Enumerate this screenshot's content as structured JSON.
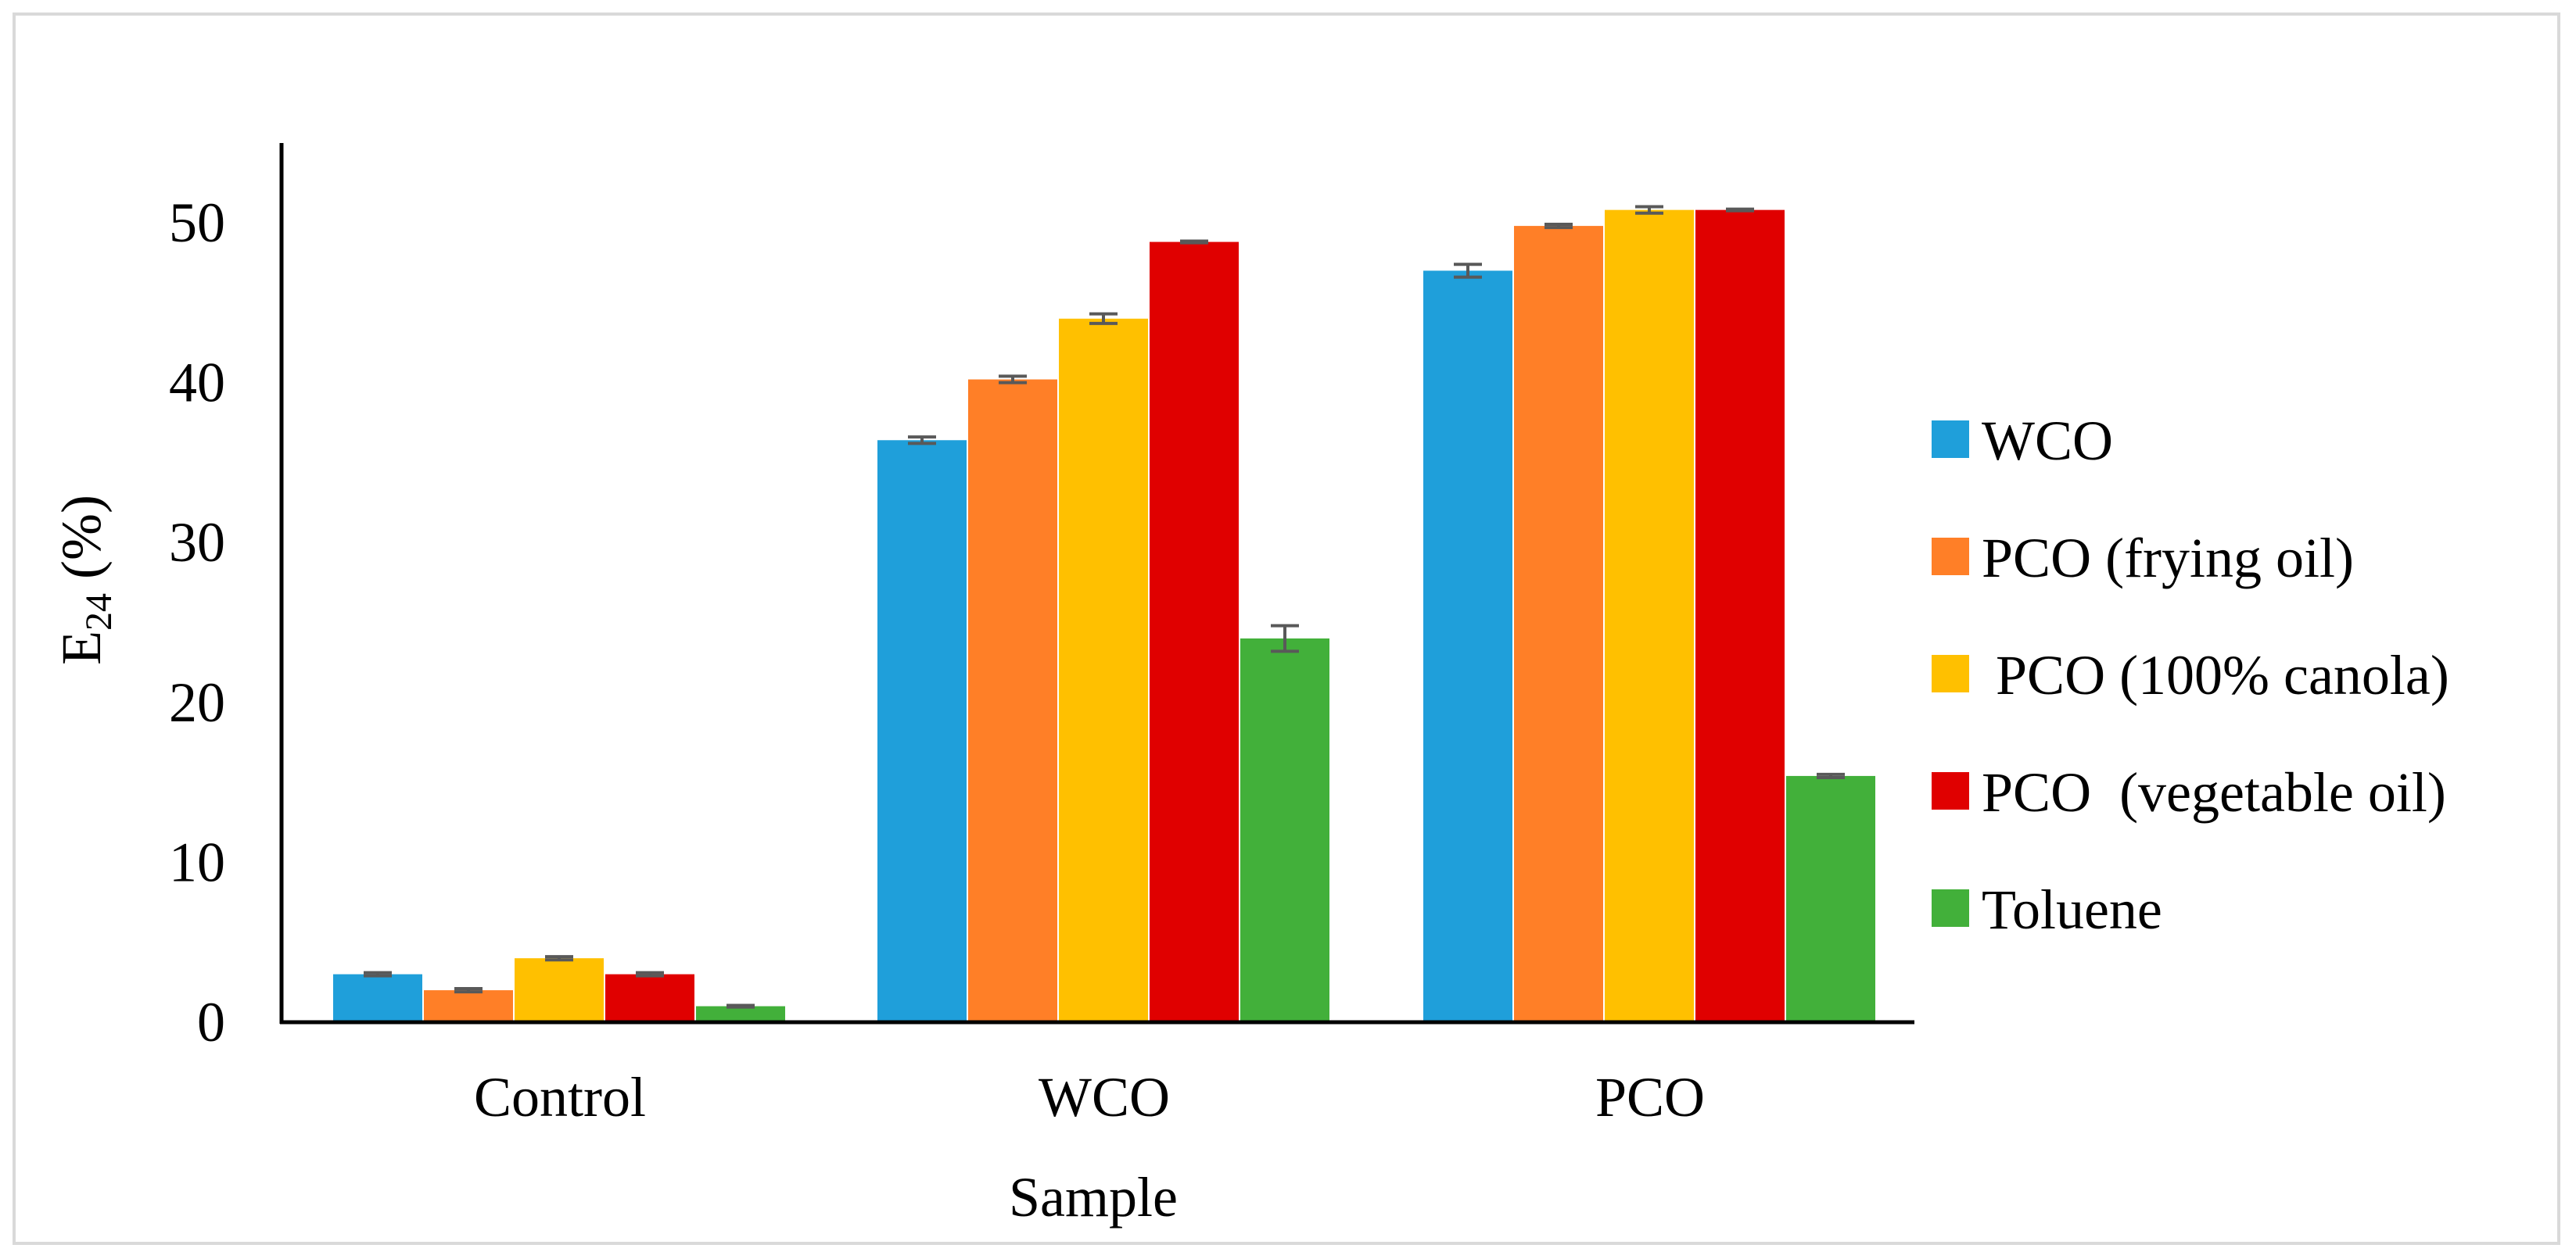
{
  "chart_data": {
    "type": "bar",
    "title": "",
    "xlabel": "Sample",
    "ylabel": {
      "main": "E",
      "subscript": "24",
      "suffix": " (%)"
    },
    "ylim": [
      0,
      55
    ],
    "yticks": [
      "0",
      "10",
      "20",
      "30",
      "40",
      "50"
    ],
    "grid": false,
    "legend_position": "right",
    "categories": [
      "Control",
      "WCO",
      "PCO"
    ],
    "series": [
      {
        "name": "WCO",
        "color": "#1f9fda",
        "values": [
          3.0,
          36.4,
          47.0
        ],
        "errors": [
          0.1,
          0.2,
          0.4
        ]
      },
      {
        "name": "PCO (frying oil)",
        "color": "#ff7f27",
        "values": [
          2.0,
          40.2,
          49.8
        ],
        "errors": [
          0.1,
          0.2,
          0.1
        ]
      },
      {
        "name": " PCO (100% canola)",
        "color": "#ffc000",
        "values": [
          4.0,
          44.0,
          50.8
        ],
        "errors": [
          0.1,
          0.3,
          0.2
        ]
      },
      {
        "name": "PCO  (vegetable oil)",
        "color": "#e00000",
        "values": [
          3.0,
          48.8,
          50.8
        ],
        "errors": [
          0.1,
          0.05,
          0.05
        ]
      },
      {
        "name": "Toluene",
        "color": "#42b03a",
        "values": [
          1.0,
          24.0,
          15.4
        ],
        "errors": [
          0.05,
          0.8,
          0.1
        ]
      }
    ]
  }
}
